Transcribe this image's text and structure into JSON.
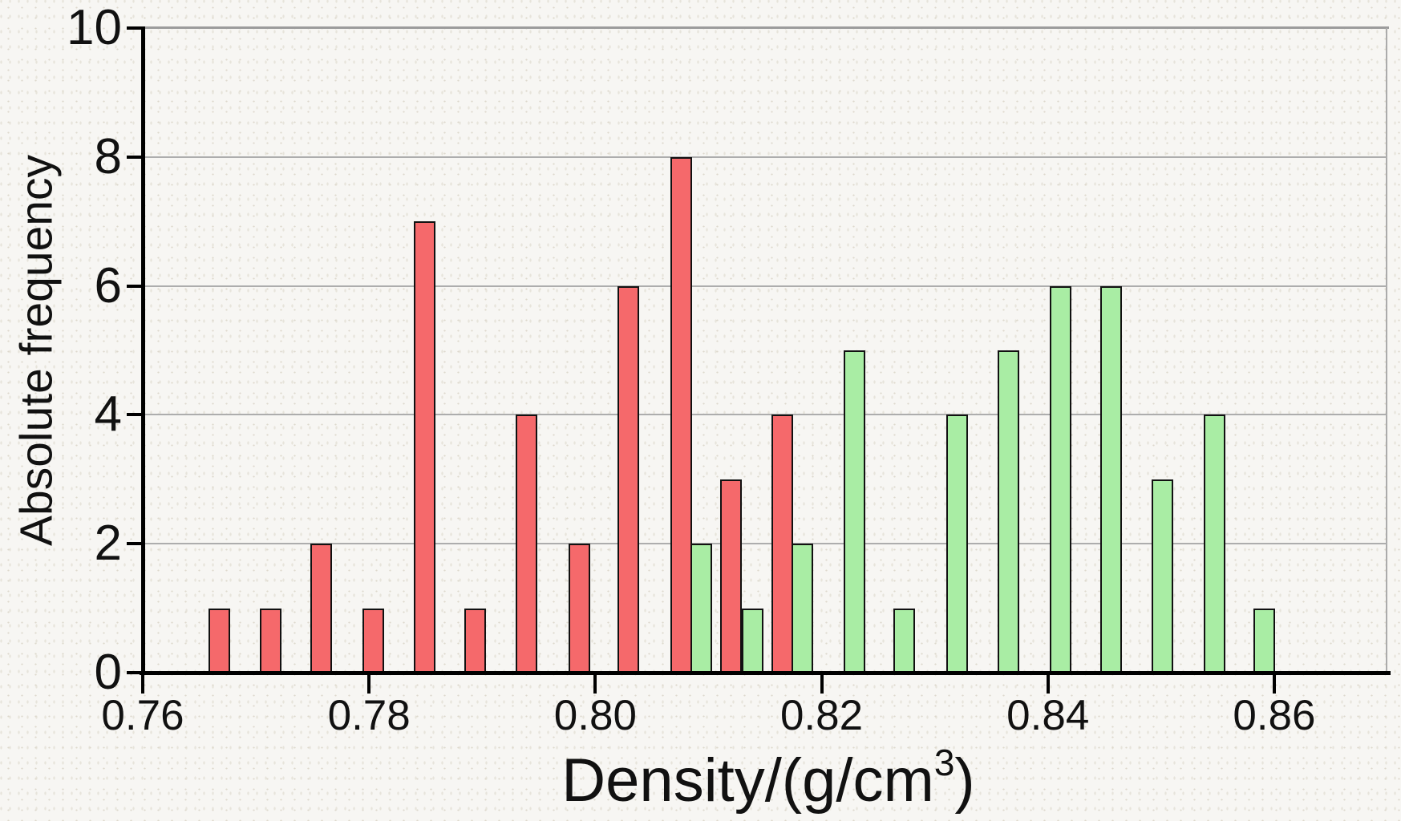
{
  "labels": {
    "y_title": "Absolute frequency",
    "x_title_full": "Density/(g/cm³)",
    "x_title_prefix": "Density/(g/cm",
    "x_title_sup": "3",
    "x_title_suffix": ")"
  },
  "axes": {
    "x_tick_labels": [
      "0.76",
      "0.78",
      "0.80",
      "0.82",
      "0.84",
      "0.86"
    ],
    "x_tick_values": [
      0.76,
      0.78,
      0.8,
      0.82,
      0.84,
      0.86
    ],
    "y_tick_labels": [
      "0",
      "2",
      "4",
      "6",
      "8",
      "10"
    ],
    "y_tick_values": [
      0,
      2,
      4,
      6,
      8,
      10
    ],
    "grid_values": [
      2,
      4,
      6,
      8
    ]
  },
  "colors": {
    "red_fill": "#F5696B",
    "green_fill": "#A9EDA4",
    "bar_border": "#111111",
    "gridline": "#ADADAD",
    "axis": "#000000",
    "frame": "#9C9C9C",
    "background": "#F7F6F3"
  },
  "chart_data": {
    "type": "bar",
    "title": "",
    "xlabel": "Density/(g/cm³)",
    "ylabel": "Absolute frequency",
    "xlim": [
      0.76,
      0.87
    ],
    "ylim": [
      0,
      10
    ],
    "grid": "horizontal",
    "legend": "none",
    "bin_width": 0.0045,
    "series": [
      {
        "name": "red-sample",
        "color": "#F5696B",
        "n_total": 40,
        "points": [
          {
            "x": 0.7668,
            "y": 1
          },
          {
            "x": 0.7713,
            "y": 1
          },
          {
            "x": 0.7758,
            "y": 2
          },
          {
            "x": 0.7804,
            "y": 1
          },
          {
            "x": 0.7849,
            "y": 7
          },
          {
            "x": 0.7894,
            "y": 1
          },
          {
            "x": 0.7939,
            "y": 4
          },
          {
            "x": 0.7986,
            "y": 2
          },
          {
            "x": 0.8029,
            "y": 6
          },
          {
            "x": 0.8076,
            "y": 8
          },
          {
            "x": 0.812,
            "y": 3
          },
          {
            "x": 0.8165,
            "y": 4
          }
        ]
      },
      {
        "name": "green-sample",
        "color": "#A9EDA4",
        "n_total": 40,
        "points": [
          {
            "x": 0.8094,
            "y": 2
          },
          {
            "x": 0.8139,
            "y": 1
          },
          {
            "x": 0.8183,
            "y": 2
          },
          {
            "x": 0.8229,
            "y": 5
          },
          {
            "x": 0.8273,
            "y": 1
          },
          {
            "x": 0.832,
            "y": 4
          },
          {
            "x": 0.8365,
            "y": 5
          },
          {
            "x": 0.8411,
            "y": 6
          },
          {
            "x": 0.8456,
            "y": 6
          },
          {
            "x": 0.8501,
            "y": 3
          },
          {
            "x": 0.8547,
            "y": 4
          },
          {
            "x": 0.8591,
            "y": 1
          }
        ]
      }
    ]
  }
}
